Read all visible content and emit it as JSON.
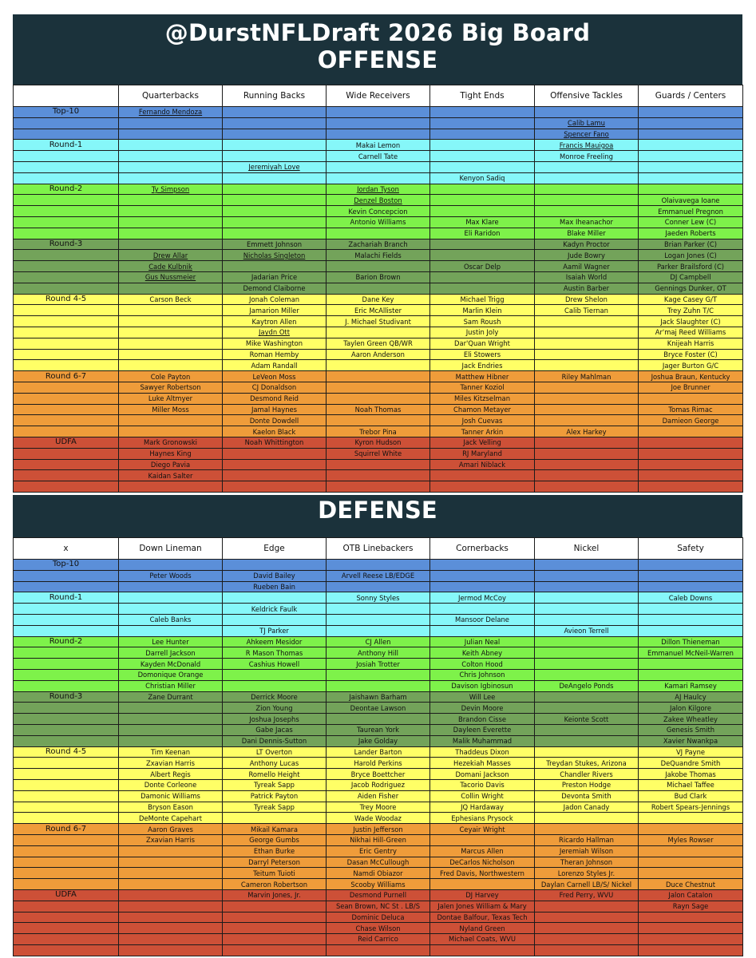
{
  "title": "@DurstNFLDraft 2026 Big Board",
  "colors": {
    "header_bg": "#1b323b",
    "Top-10": "#5b8fd9",
    "Round-1": "#86f7f9",
    "Round-2": "#7ef24a",
    "Round-3": "#73a35a",
    "Round 4-5": "#ffff66",
    "Round 6-7": "#ef9c3a",
    "UDFA": "#cd5037"
  },
  "offense": {
    "heading": "OFFENSE",
    "columns": [
      "",
      "Quarterbacks",
      "Running Backs",
      "Wide Receivers",
      "Tight Ends",
      "Offensive Tackles",
      "Guards / Centers"
    ],
    "rows": [
      {
        "tier": "Top-10",
        "label": "Top-10",
        "cells": [
          "Fernando Mendoza",
          "",
          "",
          "",
          "",
          ""
        ]
      },
      {
        "tier": "Top-10",
        "label": "",
        "cells": [
          "",
          "",
          "",
          "",
          "Calib Lamu",
          ""
        ]
      },
      {
        "tier": "Top-10",
        "label": "",
        "cells": [
          "",
          "",
          "",
          "",
          "Spencer Fano",
          ""
        ]
      },
      {
        "tier": "Round-1",
        "label": "Round-1",
        "cells": [
          "",
          "",
          "Makai Lemon",
          "",
          "Francis Mauigoa",
          ""
        ]
      },
      {
        "tier": "Round-1",
        "label": "",
        "cells": [
          "",
          "",
          "Carnell Tate",
          "",
          "Monroe Freeling",
          ""
        ]
      },
      {
        "tier": "Round-1",
        "label": "",
        "cells": [
          "",
          "Jeremiyah Love",
          "",
          "",
          "",
          ""
        ]
      },
      {
        "tier": "Round-1",
        "label": "",
        "cells": [
          "",
          "",
          "",
          "Kenyon Sadiq",
          "",
          ""
        ]
      },
      {
        "tier": "Round-2",
        "label": "Round-2",
        "cells": [
          "Ty Simpson",
          "",
          "Jordan Tyson",
          "",
          "",
          ""
        ]
      },
      {
        "tier": "Round-2",
        "label": "",
        "cells": [
          "",
          "",
          "Denzel Boston",
          "",
          "",
          "Olaivavega Ioane"
        ]
      },
      {
        "tier": "Round-2",
        "label": "",
        "cells": [
          "",
          "",
          "Kevin Concepcion",
          "",
          "",
          "Emmanuel Pregnon"
        ]
      },
      {
        "tier": "Round-2",
        "label": "",
        "cells": [
          "",
          "",
          "Antonio Williams",
          "Max Klare",
          "Max Iheanachor",
          "Conner Lew (C)"
        ]
      },
      {
        "tier": "Round-2",
        "label": "",
        "cells": [
          "",
          "",
          "",
          "Eli Raridon",
          "Blake Miller",
          "Jaeden Roberts"
        ]
      },
      {
        "tier": "Round-3",
        "label": "Round-3",
        "cells": [
          "",
          "Emmett Johnson",
          "Zachariah Branch",
          "",
          "Kadyn Proctor",
          "Brian Parker (C)"
        ]
      },
      {
        "tier": "Round-3",
        "label": "",
        "cells": [
          "Drew Allar",
          "Nicholas Singleton",
          "Malachi Fields",
          "",
          "Jude Bowry",
          "Logan Jones (C)"
        ]
      },
      {
        "tier": "Round-3",
        "label": "",
        "cells": [
          "Cade Kulbnik",
          "",
          "",
          "Oscar Delp",
          "Aamil Wagner",
          "Parker Brailsford (C)"
        ]
      },
      {
        "tier": "Round-3",
        "label": "",
        "cells": [
          "Gus Nussmeier",
          "Jadarian Price",
          "Barion Brown",
          "",
          "Isaiah World",
          "DJ Campbell"
        ]
      },
      {
        "tier": "Round-3",
        "label": "",
        "cells": [
          "",
          "Demond Claiborne",
          "",
          "",
          "Austin Barber",
          "Gennings Dunker, OT"
        ]
      },
      {
        "tier": "Round 4-5",
        "label": "Round 4-5",
        "cells": [
          "Carson Beck",
          "Jonah Coleman",
          "Dane Key",
          "Michael Trigg",
          "Drew Shelon",
          "Kage Casey G/T"
        ]
      },
      {
        "tier": "Round 4-5",
        "label": "",
        "cells": [
          "",
          "Jamarion Miller",
          "Eric McAllister",
          "Marlin Klein",
          "Calib Tiernan",
          "Trey Zuhn T/C"
        ]
      },
      {
        "tier": "Round 4-5",
        "label": "",
        "cells": [
          "",
          "Kaytron Allen",
          "J. Michael Studivant",
          "Sam Roush",
          "",
          "Jack Slaughter (C)"
        ]
      },
      {
        "tier": "Round 4-5",
        "label": "",
        "cells": [
          "",
          "Jaydn Ott",
          "",
          "Justin Joly",
          "",
          "Ar'maj Reed Williams"
        ]
      },
      {
        "tier": "Round 4-5",
        "label": "",
        "cells": [
          "",
          "Mike Washington",
          "Taylen Green QB/WR",
          "Dar'Quan Wright",
          "",
          "Knijeah Harris"
        ]
      },
      {
        "tier": "Round 4-5",
        "label": "",
        "cells": [
          "",
          "Roman Hemby",
          "Aaron Anderson",
          "Eli Stowers",
          "",
          "Bryce Foster (C)"
        ]
      },
      {
        "tier": "Round 4-5",
        "label": "",
        "cells": [
          "",
          "Adam Randall",
          "",
          "Jack Endries",
          "",
          "Jager Burton G/C"
        ]
      },
      {
        "tier": "Round 6-7",
        "label": "Round 6-7",
        "cells": [
          "Cole Payton",
          "LeVeon Moss",
          "",
          "Matthew Hibner",
          "Riley Mahlman",
          "Joshua Braun, Kentucky"
        ]
      },
      {
        "tier": "Round 6-7",
        "label": "",
        "cells": [
          "Sawyer Robertson",
          "CJ Donaldson",
          "",
          "Tanner Koziol",
          "",
          "Joe Brunner"
        ]
      },
      {
        "tier": "Round 6-7",
        "label": "",
        "cells": [
          "Luke Altmyer",
          "Desmond Reid",
          "",
          "Miles Kitzselman",
          "",
          ""
        ]
      },
      {
        "tier": "Round 6-7",
        "label": "",
        "cells": [
          "Miller Moss",
          "Jamal Haynes",
          "Noah Thomas",
          "Chamon Metayer",
          "",
          "Tomas Rimac"
        ]
      },
      {
        "tier": "Round 6-7",
        "label": "",
        "cells": [
          "",
          "Donte Dowdell",
          "",
          "Josh Cuevas",
          "",
          "Damieon George"
        ]
      },
      {
        "tier": "Round 6-7",
        "label": "",
        "cells": [
          "",
          "Kaelon Black",
          "Trebor Pina",
          "Tanner Arkin",
          "Alex Harkey",
          ""
        ]
      },
      {
        "tier": "UDFA",
        "label": "UDFA",
        "cells": [
          "Mark Gronowski",
          "Noah Whittington",
          "Kyron Hudson",
          "Jack Velling",
          "",
          ""
        ]
      },
      {
        "tier": "UDFA",
        "label": "",
        "cells": [
          "Haynes King",
          "",
          "Squirrel White",
          "RJ Maryland",
          "",
          ""
        ]
      },
      {
        "tier": "UDFA",
        "label": "",
        "cells": [
          "Diego Pavia",
          "",
          "",
          "Amari Niblack",
          "",
          ""
        ]
      },
      {
        "tier": "UDFA",
        "label": "",
        "cells": [
          "Kaidan Salter",
          "",
          "",
          "",
          "",
          ""
        ]
      },
      {
        "tier": "UDFA",
        "label": "",
        "cells": [
          "",
          "",
          "",
          "",
          "",
          ""
        ]
      }
    ]
  },
  "defense": {
    "heading": "DEFENSE",
    "columns": [
      "x",
      "Down Lineman",
      "Edge",
      "OTB Linebackers",
      "Cornerbacks",
      "Nickel",
      "Safety"
    ],
    "rows": [
      {
        "tier": "Top-10",
        "label": "Top-10",
        "cells": [
          "",
          "",
          "",
          "",
          "",
          ""
        ]
      },
      {
        "tier": "Top-10",
        "label": "",
        "cells": [
          "Peter Woods",
          "David Bailey",
          "Arvell Reese LB/EDGE",
          "",
          "",
          ""
        ]
      },
      {
        "tier": "Top-10",
        "label": "",
        "cells": [
          "",
          "Rueben Bain",
          "",
          "",
          "",
          ""
        ]
      },
      {
        "tier": "Round-1",
        "label": "Round-1",
        "cells": [
          "",
          "",
          "Sonny Styles",
          "Jermod McCoy",
          "",
          "Caleb Downs"
        ]
      },
      {
        "tier": "Round-1",
        "label": "",
        "cells": [
          "",
          "Keldrick Faulk",
          "",
          "",
          "",
          ""
        ]
      },
      {
        "tier": "Round-1",
        "label": "",
        "cells": [
          "Caleb Banks",
          "",
          "",
          "Mansoor Delane",
          "",
          ""
        ]
      },
      {
        "tier": "Round-1",
        "label": "",
        "cells": [
          "",
          "TJ Parker",
          "",
          "",
          "Avieon Terrell",
          ""
        ]
      },
      {
        "tier": "Round-2",
        "label": "Round-2",
        "cells": [
          "Lee Hunter",
          "Ahkeem Mesidor",
          "CJ Allen",
          "Julian Neal",
          "",
          "Dillon Thieneman"
        ]
      },
      {
        "tier": "Round-2",
        "label": "",
        "cells": [
          "Darrell Jackson",
          "R Mason Thomas",
          "Anthony Hill",
          "Keith Abney",
          "",
          "Emmanuel McNeil-Warren"
        ]
      },
      {
        "tier": "Round-2",
        "label": "",
        "cells": [
          "Kayden McDonald",
          "Cashius Howell",
          "Josiah Trotter",
          "Colton Hood",
          "",
          ""
        ]
      },
      {
        "tier": "Round-2",
        "label": "",
        "cells": [
          "Domonique Orange",
          "",
          "",
          "Chris Johnson",
          "",
          ""
        ]
      },
      {
        "tier": "Round-2",
        "label": "",
        "cells": [
          "Christian Miller",
          "",
          "",
          "Davison Igbinosun",
          "DeAngelo Ponds",
          "Kamari Ramsey"
        ]
      },
      {
        "tier": "Round-3",
        "label": "Round-3",
        "cells": [
          "Zane Durrant",
          "Derrick Moore",
          "Jaishawn Barham",
          "Will Lee",
          "",
          "AJ Haulcy"
        ]
      },
      {
        "tier": "Round-3",
        "label": "",
        "cells": [
          "",
          "Zion Young",
          "Deontae Lawson",
          "Devin Moore",
          "",
          "Jalon Kilgore"
        ]
      },
      {
        "tier": "Round-3",
        "label": "",
        "cells": [
          "",
          "Joshua Josephs",
          "",
          "Brandon Cisse",
          "Keionte Scott",
          "Zakee Wheatley"
        ]
      },
      {
        "tier": "Round-3",
        "label": "",
        "cells": [
          "",
          "Gabe Jacas",
          "Taurean York",
          "Dayleen Everette",
          "",
          "Genesis Smith"
        ]
      },
      {
        "tier": "Round-3",
        "label": "",
        "cells": [
          "",
          "Dani Dennis-Sutton",
          "Jake Golday",
          "Malik Muhammad",
          "",
          "Xavier Nwankpa"
        ]
      },
      {
        "tier": "Round 4-5",
        "label": "Round 4-5",
        "cells": [
          "Tim Keenan",
          "LT Overton",
          "Lander Barton",
          "Thaddeus Dixon",
          "",
          "VJ Payne"
        ]
      },
      {
        "tier": "Round 4-5",
        "label": "",
        "cells": [
          "Zxavian Harris",
          "Anthony Lucas",
          "Harold Perkins",
          "Hezekiah Masses",
          "Treydan Stukes, Arizona",
          "DeQuandre Smith"
        ]
      },
      {
        "tier": "Round 4-5",
        "label": "",
        "cells": [
          "Albert Regis",
          "Romello Height",
          "Bryce Boettcher",
          "Domani Jackson",
          "Chandler Rivers",
          "Jakobe Thomas"
        ]
      },
      {
        "tier": "Round 4-5",
        "label": "",
        "cells": [
          "Donte Corleone",
          "Tyreak Sapp",
          "Jacob Rodriguez",
          "Tacorio Davis",
          "Preston Hodge",
          "Michael Taffee"
        ]
      },
      {
        "tier": "Round 4-5",
        "label": "",
        "cells": [
          "Damonic Williams",
          "Patrick Payton",
          "Aiden Fisher",
          "Collin Wright",
          "Devonta Smith",
          "Bud Clark"
        ]
      },
      {
        "tier": "Round 4-5",
        "label": "",
        "cells": [
          "Bryson Eason",
          "Tyreak Sapp",
          "Trey Moore",
          "JQ Hardaway",
          "Jadon Canady",
          "Robert Spears-Jennings"
        ]
      },
      {
        "tier": "Round 4-5",
        "label": "",
        "cells": [
          "DeMonte Capehart",
          "",
          "Wade Woodaz",
          "Ephesians Prysock",
          "",
          ""
        ]
      },
      {
        "tier": "Round 6-7",
        "label": "Round 6-7",
        "cells": [
          "Aaron Graves",
          "Mikail Kamara",
          "Justin Jefferson",
          "Ceyair Wright",
          "",
          ""
        ]
      },
      {
        "tier": "Round 6-7",
        "label": "",
        "cells": [
          "Zxavian Harris",
          "George Gumbs",
          "Nikhai Hill-Green",
          "",
          "Ricardo Hallman",
          "Myles Rowser"
        ]
      },
      {
        "tier": "Round 6-7",
        "label": "",
        "cells": [
          "",
          "Ethan Burke",
          "Eric Gentry",
          "Marcus Allen",
          "Jeremiah Wilson",
          ""
        ]
      },
      {
        "tier": "Round 6-7",
        "label": "",
        "cells": [
          "",
          "Darryl Peterson",
          "Dasan McCullough",
          "DeCarlos Nicholson",
          "Theran Johnson",
          ""
        ]
      },
      {
        "tier": "Round 6-7",
        "label": "",
        "cells": [
          "",
          "Teitum Tuioti",
          "Namdi Obiazor",
          "Fred Davis, Northwestern",
          "Lorenzo Styles Jr.",
          ""
        ]
      },
      {
        "tier": "Round 6-7",
        "label": "",
        "cells": [
          "",
          "Cameron Robertson",
          "Scooby Williams",
          "",
          "Daylan Carnell LB/S/ Nickel",
          "Duce Chestnut"
        ]
      },
      {
        "tier": "UDFA",
        "label": "UDFA",
        "cells": [
          "",
          "Marvin Jones, Jr.",
          "Desmond Purnell",
          "DJ Harvey",
          "Fred Perry, WVU",
          "Jalon Catalon"
        ]
      },
      {
        "tier": "UDFA",
        "label": "",
        "cells": [
          "",
          "",
          "Sean Brown, NC St . LB/S",
          "Jalen Jones William & Mary",
          "",
          "Rayn Sage"
        ]
      },
      {
        "tier": "UDFA",
        "label": "",
        "cells": [
          "",
          "",
          "Dominic Deluca",
          "Dontae Balfour, Texas Tech",
          "",
          ""
        ]
      },
      {
        "tier": "UDFA",
        "label": "",
        "cells": [
          "",
          "",
          "Chase Wilson",
          "Nyland Green",
          "",
          ""
        ]
      },
      {
        "tier": "UDFA",
        "label": "",
        "cells": [
          "",
          "",
          "Reid Carrico",
          "Michael Coats, WVU",
          "",
          ""
        ]
      },
      {
        "tier": "UDFA",
        "label": "",
        "cells": [
          "",
          "",
          "",
          "",
          "",
          ""
        ]
      }
    ]
  }
}
